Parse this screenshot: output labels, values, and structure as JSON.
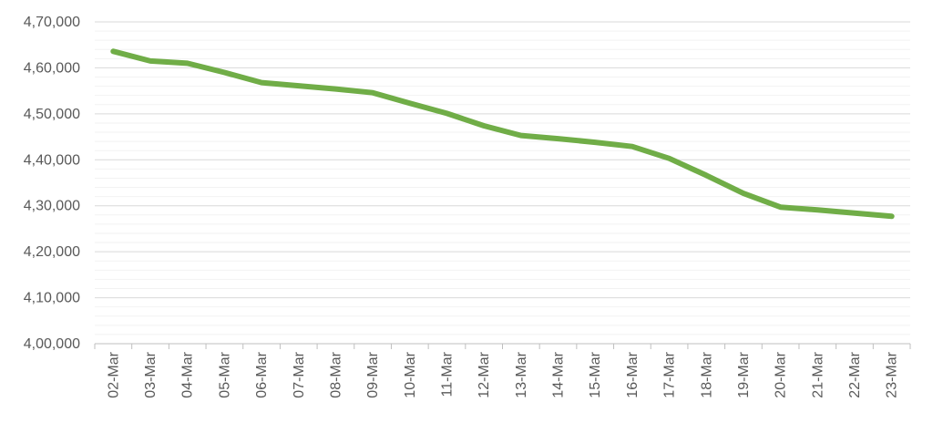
{
  "chart_data": {
    "type": "line",
    "title": "",
    "xlabel": "",
    "ylabel": "",
    "categories": [
      "02-Mar",
      "03-Mar",
      "04-Mar",
      "05-Mar",
      "06-Mar",
      "07-Mar",
      "08-Mar",
      "09-Mar",
      "10-Mar",
      "11-Mar",
      "12-Mar",
      "13-Mar",
      "14-Mar",
      "15-Mar",
      "16-Mar",
      "17-Mar",
      "18-Mar",
      "19-Mar",
      "20-Mar",
      "21-Mar",
      "22-Mar",
      "23-Mar"
    ],
    "series": [
      {
        "values": [
          463600,
          461500,
          461000,
          459000,
          456800,
          456100,
          455400,
          454600,
          452300,
          450100,
          447400,
          445300,
          444600,
          443800,
          442900,
          440300,
          436600,
          432700,
          429700,
          429100,
          428400,
          427700
        ],
        "color": "#70AD47"
      }
    ],
    "ylim": [
      400000,
      470000
    ],
    "yticks": [
      400000,
      410000,
      420000,
      430000,
      440000,
      450000,
      460000,
      470000
    ],
    "ytick_labels": [
      "4,00,000",
      "4,10,000",
      "4,20,000",
      "4,30,000",
      "4,40,000",
      "4,50,000",
      "4,60,000",
      "4,70,000"
    ],
    "grid": true,
    "legend": "none"
  },
  "colors": {
    "line": "#70AD47",
    "major_grid": "#D9D9D9",
    "minor_grid": "#F2F2F2",
    "axis": "#BFBFBF",
    "text": "#595959"
  }
}
